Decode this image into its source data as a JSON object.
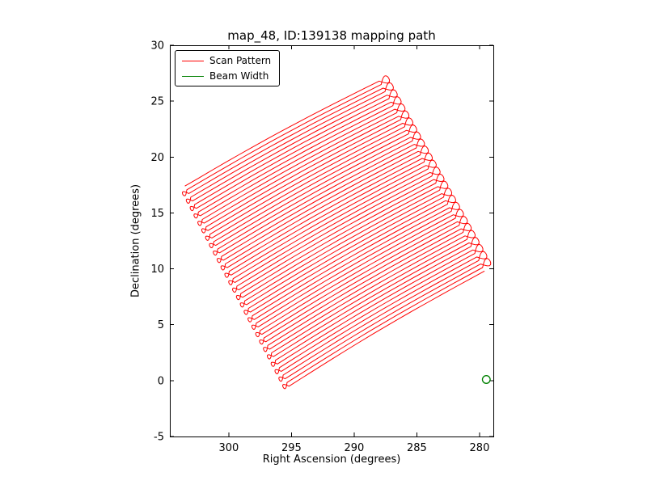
{
  "chart_data": {
    "type": "line",
    "title": "map_48, ID:139138 mapping path",
    "xlabel": "Right Ascension (degrees)",
    "ylabel": "Declination (degrees)",
    "x_axis_inverted": true,
    "xlim": [
      304.7,
      278.9
    ],
    "ylim": [
      -5,
      30
    ],
    "x_ticks": [
      "300",
      "295",
      "290",
      "285",
      "280"
    ],
    "y_ticks": [
      "-5",
      "0",
      "5",
      "10",
      "15",
      "20",
      "25",
      "30"
    ],
    "grid": false,
    "legend": {
      "position": "upper left",
      "entries": [
        {
          "label": "Scan Pattern",
          "color": "#ff0000"
        },
        {
          "label": "Beam Width",
          "color": "#008000"
        }
      ]
    },
    "series": [
      {
        "name": "Scan Pattern",
        "type": "raster_scan_path",
        "color": "#ff0000",
        "corners_radec": {
          "left": [
            303.5,
            17.4
          ],
          "top": [
            288.0,
            26.8
          ],
          "right": [
            279.6,
            9.8
          ],
          "bottom": [
            295.2,
            -0.5
          ]
        },
        "n_scan_lines": 55,
        "turnaround_loops": true
      },
      {
        "name": "Beam Width",
        "type": "circle_marker",
        "color": "#008000",
        "center_radec": [
          279.46,
          0.1
        ],
        "radius_deg": 0.35
      }
    ]
  }
}
